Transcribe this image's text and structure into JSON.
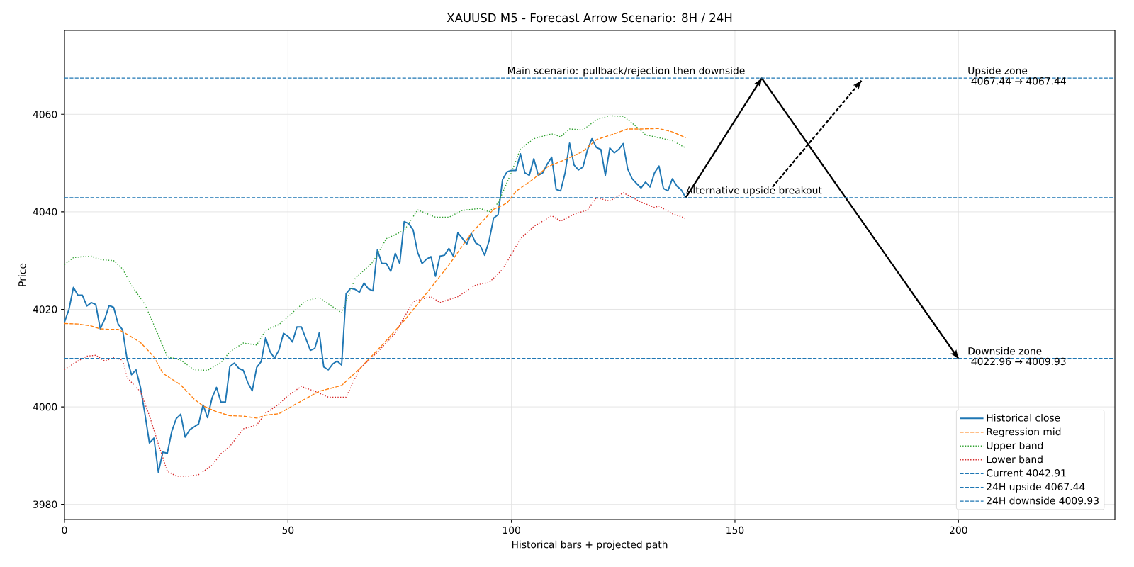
{
  "chart_data": {
    "type": "line",
    "title": "XAUUSD M5 - Forecast Arrow Scenario: 8H / 24H",
    "xlabel": "Historical bars + projected path",
    "ylabel": "Price",
    "xlim": [
      0,
      235
    ],
    "ylim": [
      3976.9,
      4077.2
    ],
    "xticks": [
      0,
      50,
      100,
      150,
      200
    ],
    "yticks": [
      3980,
      4000,
      4020,
      4040,
      4060
    ],
    "grid": true,
    "legend": "bottom right",
    "series": [
      {
        "name": "Historical close",
        "color": "#1f77b4",
        "line_style": "solid",
        "x": [
          0,
          1,
          2,
          3,
          4,
          5,
          6,
          7,
          8,
          9,
          10,
          11,
          12,
          13,
          14,
          15,
          16,
          17,
          18,
          19,
          20,
          21,
          22,
          23,
          24,
          25,
          26,
          27,
          28,
          29,
          30,
          31,
          32,
          33,
          34,
          35,
          36,
          37,
          38,
          39,
          40,
          41,
          42,
          43,
          44,
          45,
          46,
          47,
          48,
          49,
          50,
          51,
          52,
          53,
          54,
          55,
          56,
          57,
          58,
          59,
          60,
          61,
          62,
          63,
          64,
          65,
          66,
          67,
          68,
          69,
          70,
          71,
          72,
          73,
          74,
          75,
          76,
          77,
          78,
          79,
          80,
          81,
          82,
          83,
          84,
          85,
          86,
          87,
          88,
          89,
          90,
          91,
          92,
          93,
          94,
          95,
          96,
          97,
          98,
          99,
          100,
          101,
          102,
          103,
          104,
          105,
          106,
          107,
          108,
          109,
          110,
          111,
          112,
          113,
          114,
          115,
          116,
          117,
          118,
          119,
          120,
          121,
          122,
          123,
          124,
          125,
          126,
          127,
          128,
          129,
          130,
          131,
          132,
          133,
          134,
          135,
          136,
          137,
          138,
          139
        ],
        "values": [
          4017.4,
          4020,
          4024.5,
          4022.9,
          4022.9,
          4020.7,
          4021.4,
          4021,
          4016,
          4018,
          4020.8,
          4020.4,
          4017,
          4015.8,
          4009.8,
          4006.6,
          4007.6,
          4004,
          3998.5,
          3992.6,
          3993.6,
          3986.6,
          3990.7,
          3990.5,
          3995,
          3997.6,
          3998.5,
          3993.8,
          3995.3,
          3995.9,
          3996.5,
          4000.4,
          3997.8,
          4001.8,
          4004,
          4001,
          4001,
          4008.3,
          4009,
          4007.9,
          4007.5,
          4005,
          4003.3,
          4008.1,
          4009.3,
          4014.2,
          4011.3,
          4010,
          4011.7,
          4015.1,
          4014.5,
          4013.3,
          4016.4,
          4016.4,
          4014,
          4011.6,
          4012,
          4015.2,
          4008.2,
          4007.6,
          4008.8,
          4009.4,
          4008.6,
          4023.2,
          4024.3,
          4024.1,
          4023.5,
          4025.4,
          4024.2,
          4023.8,
          4032.2,
          4029.4,
          4029.4,
          4027.8,
          4031.5,
          4029.4,
          4038,
          4037.6,
          4036.3,
          4031.7,
          4029.4,
          4030.3,
          4030.8,
          4026.8,
          4030.9,
          4031.1,
          4032.5,
          4030.9,
          4035.7,
          4034.6,
          4033.4,
          4035.6,
          4033.6,
          4033.1,
          4031.1,
          4034.1,
          4038.7,
          4039.4,
          4046.6,
          4048.2,
          4048.5,
          4048.5,
          4051.9,
          4048,
          4047.5,
          4050.9,
          4047.5,
          4048,
          4049.8,
          4051.2,
          4044.6,
          4044.3,
          4048,
          4054.1,
          4049.6,
          4048.6,
          4049.2,
          4052.7,
          4055,
          4053.2,
          4052.8,
          4047.5,
          4053.1,
          4052.1,
          4052.8,
          4054,
          4048.8,
          4046.8,
          4045.8,
          4044.9,
          4046.1,
          4045.1,
          4048,
          4049.4,
          4044.8,
          4044.3,
          4046.8,
          4045.3,
          4044.5,
          4042.9
        ]
      },
      {
        "name": "Regression mid",
        "color": "#ff7f0e",
        "line_style": "dashed",
        "x": [
          0,
          3,
          6,
          8,
          10,
          12,
          14,
          17,
          20,
          22,
          26,
          29,
          31,
          34,
          37,
          40,
          43,
          45,
          48,
          51,
          54,
          57,
          62,
          66,
          71,
          76,
          81,
          86,
          91,
          96,
          99,
          101,
          105,
          108,
          112,
          116,
          119,
          123,
          126,
          129,
          133,
          136,
          139
        ],
        "values": [
          4017.1,
          4017,
          4016.6,
          4016,
          4015.9,
          4015.9,
          4014.9,
          4013.2,
          4010.3,
          4006.9,
          4004.5,
          4001.6,
          4000.2,
          3999,
          3998.2,
          3998.1,
          3997.7,
          3998.3,
          3998.6,
          4000.2,
          4001.7,
          4003.2,
          4004.4,
          4007.8,
          4012.6,
          4017.7,
          4023.3,
          4029.1,
          4035.6,
          4040.5,
          4041.8,
          4044.2,
          4046.8,
          4049.2,
          4050.7,
          4052.4,
          4054.8,
          4056,
          4057,
          4057,
          4057.1,
          4056.4,
          4055.2
        ]
      },
      {
        "name": "Upper band",
        "color": "#2ca02c",
        "line_style": "dotted",
        "x": [
          0,
          2,
          4,
          6,
          8,
          11,
          13,
          15,
          18,
          21,
          23,
          26,
          29,
          32,
          35,
          37,
          40,
          43,
          45,
          48,
          51,
          54,
          57,
          62,
          65,
          69,
          72,
          76,
          79,
          83,
          86,
          89,
          93,
          95,
          97,
          100,
          102,
          105,
          109,
          111,
          113,
          116,
          119,
          122,
          125,
          127,
          130,
          133,
          136,
          139
        ],
        "values": [
          4029.2,
          4030.6,
          4030.8,
          4030.9,
          4030.2,
          4030,
          4028.3,
          4024.9,
          4021,
          4014.7,
          4010.3,
          4009.6,
          4007.6,
          4007.5,
          4009.1,
          4011.3,
          4013.1,
          4012.7,
          4015.7,
          4016.9,
          4019.3,
          4021.8,
          4022.4,
          4019.3,
          4026.3,
          4029.7,
          4034.5,
          4036.2,
          4040.4,
          4038.9,
          4038.9,
          4040.3,
          4040.7,
          4040,
          4041.8,
          4048.1,
          4052.9,
          4055,
          4056,
          4055.4,
          4057,
          4056.8,
          4058.9,
          4059.7,
          4059.6,
          4058.2,
          4055.8,
          4055.2,
          4054.6,
          4053.1
        ]
      },
      {
        "name": "Lower band",
        "color": "#d62728",
        "line_style": "dotted",
        "x": [
          0,
          3,
          5,
          7,
          9,
          11,
          13,
          14,
          17,
          19,
          21,
          23,
          25,
          28,
          30,
          33,
          35,
          37,
          40,
          43,
          45,
          48,
          50,
          53,
          56,
          59,
          63,
          66,
          70,
          74,
          78,
          82,
          84,
          88,
          92,
          95,
          98,
          100,
          102,
          105,
          109,
          111,
          114,
          117,
          119,
          122,
          125,
          129,
          132,
          133,
          136,
          138,
          139
        ],
        "values": [
          4007.7,
          4009.4,
          4010.4,
          4010.6,
          4009.4,
          4010.1,
          4009.6,
          4006,
          4003.1,
          3998.2,
          3992.4,
          3986.8,
          3985.8,
          3985.8,
          3986.1,
          3988,
          3990.4,
          3991.9,
          3995.5,
          3996.3,
          3998.7,
          4000.6,
          4002.3,
          4004.2,
          4003.2,
          4002,
          4002,
          4007.8,
          4011.2,
          4015.1,
          4021.6,
          4022.6,
          4021.4,
          4022.6,
          4025,
          4025.5,
          4028.2,
          4031.3,
          4034.5,
          4037,
          4039.2,
          4038.1,
          4039.5,
          4040.4,
          4042.9,
          4042.2,
          4043.9,
          4042,
          4040.9,
          4041.2,
          4039.6,
          4039,
          4038.6
        ]
      },
      {
        "color": "#000000",
        "line_style": "solid",
        "x": [
          139,
          156,
          200
        ],
        "values": [
          4042.9,
          4067.4,
          4009.9
        ]
      },
      {
        "color": "#000000",
        "line_style": "dashed",
        "x": [
          158.4,
          178.3
        ],
        "values": [
          4045.1,
          4066.9
        ]
      }
    ],
    "ref_lines": [
      {
        "axis": "y",
        "value": 4042.91,
        "label": "Current 4042.91",
        "color": "#1f77b4",
        "line_style": "dashed"
      },
      {
        "axis": "y",
        "value": 4067.44,
        "label": "24H upside 4067.44",
        "color": "#1f77b4",
        "line_style": "dashed"
      },
      {
        "axis": "y",
        "value": 4009.93,
        "label": "24H downside 4009.93",
        "color": "#1f77b4",
        "line_style": "dashed"
      }
    ],
    "annotations": [
      {
        "text": "Main scenario: pullback/rejection then downside",
        "x": 99,
        "y": 4067.44
      },
      {
        "text": "Alternative upside breakout",
        "x": 139,
        "y": 4042.91
      },
      {
        "text": "Upside zone",
        "x": 202,
        "y": 4067.44
      },
      {
        "text": "4067.44 → 4067.44",
        "x": 202,
        "y": 4067.44
      },
      {
        "text": "Downside zone",
        "x": 202,
        "y": 4009.93
      },
      {
        "text": "4022.96 → 4009.93",
        "x": 202,
        "y": 4009.93
      }
    ]
  }
}
